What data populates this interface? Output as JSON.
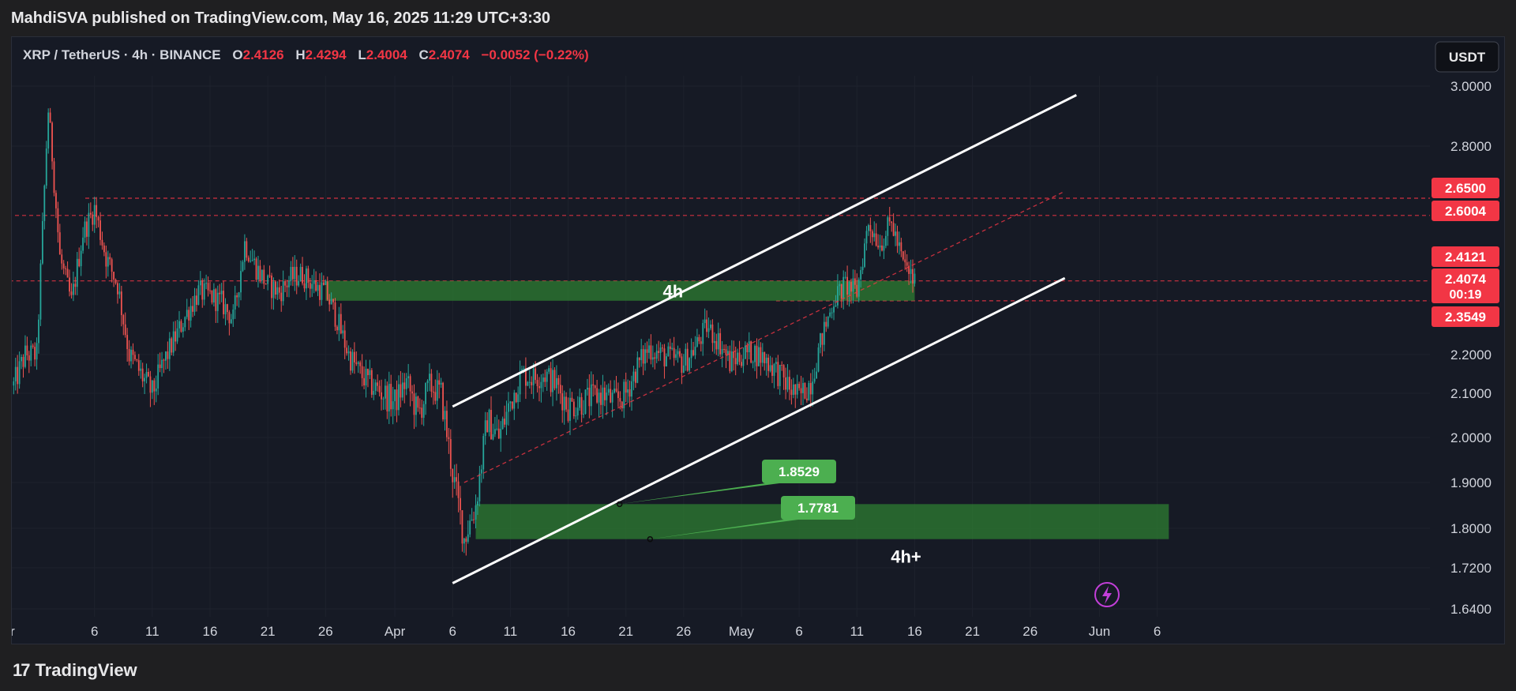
{
  "publisher_line": "MahdiSVA published on TradingView.com, May 16, 2025 11:29 UTC+3:30",
  "footer": {
    "brand": "TradingView",
    "brand_mark": "17"
  },
  "header": {
    "symbol": "XRP / TetherUS · 4h · BINANCE",
    "o_label": "O",
    "o_value": "2.4126",
    "h_label": "H",
    "h_value": "2.4294",
    "l_label": "L",
    "l_value": "2.4004",
    "c_label": "C",
    "c_value": "2.4074",
    "change": "−0.0052 (−0.22%)"
  },
  "currency_button": "USDT",
  "colors": {
    "up": "#26a69a",
    "down": "#ef5350",
    "zone": "#2e7d32",
    "zone_label": "#4caf50",
    "price_tag": "#f23645",
    "background": "#161a25",
    "text": "#d1d4dc",
    "channel": "#ffffff"
  },
  "icons": {
    "alert": "lightning-icon",
    "logo": "tradingview-logo-icon"
  },
  "chart_data": {
    "type": "candlestick",
    "interval": "4h",
    "y_axis": {
      "ticks": [
        "3.0000",
        "2.8000",
        "2.2000",
        "2.1000",
        "2.0000",
        "1.9000",
        "1.8000",
        "1.7200",
        "1.6400"
      ]
    },
    "x_axis": {
      "ticks": [
        "Mar",
        "6",
        "11",
        "16",
        "21",
        "26",
        "Apr",
        "6",
        "11",
        "16",
        "21",
        "26",
        "May",
        "6",
        "11",
        "16",
        "21",
        "26",
        "Jun",
        "6"
      ]
    },
    "price_tags": [
      {
        "value": "2.6500"
      },
      {
        "value": "2.6004"
      },
      {
        "value": "2.4121"
      },
      {
        "value": "2.4074",
        "countdown": "00:19"
      },
      {
        "value": "2.3549"
      }
    ],
    "horizontal_levels": [
      2.65,
      2.6004,
      2.4121,
      2.3549
    ],
    "zones": [
      {
        "label": "4h",
        "from": "2025-03-26",
        "to": "2025-05-16",
        "low": 2.3549,
        "high": 2.4121
      },
      {
        "label": "4h+",
        "from": "2025-04-08",
        "to": "2025-06-07",
        "low": 1.7781,
        "high": 1.8529
      }
    ],
    "callouts": [
      {
        "text": "1.8529",
        "value": 1.8529,
        "date": "2025-04-21"
      },
      {
        "text": "1.7781",
        "value": 1.7781,
        "date": "2025-04-22"
      }
    ],
    "channel_lines": [
      {
        "style": "solid",
        "points": [
          [
            "2025-04-06",
            2.07
          ],
          [
            "2025-05-30",
            2.97
          ]
        ]
      },
      {
        "style": "solid",
        "points": [
          [
            "2025-04-06",
            1.69
          ],
          [
            "2025-05-29",
            2.42
          ]
        ]
      },
      {
        "style": "dashed",
        "points": [
          [
            "2025-04-07",
            1.9
          ],
          [
            "2025-05-29",
            2.67
          ]
        ]
      }
    ],
    "path": [
      [
        "2025-02-27",
        2.12
      ],
      [
        "2025-02-28",
        2.2
      ],
      [
        "2025-03-01",
        2.2
      ],
      [
        "2025-03-02",
        2.92
      ],
      [
        "2025-03-03",
        2.48
      ],
      [
        "2025-03-04",
        2.35
      ],
      [
        "2025-03-05",
        2.55
      ],
      [
        "2025-03-06",
        2.62
      ],
      [
        "2025-03-07",
        2.48
      ],
      [
        "2025-03-08",
        2.4
      ],
      [
        "2025-03-09",
        2.2
      ],
      [
        "2025-03-10",
        2.15
      ],
      [
        "2025-03-11",
        2.1
      ],
      [
        "2025-03-12",
        2.18
      ],
      [
        "2025-03-13",
        2.25
      ],
      [
        "2025-03-14",
        2.32
      ],
      [
        "2025-03-15",
        2.38
      ],
      [
        "2025-03-16",
        2.37
      ],
      [
        "2025-03-17",
        2.35
      ],
      [
        "2025-03-18",
        2.3
      ],
      [
        "2025-03-19",
        2.52
      ],
      [
        "2025-03-20",
        2.45
      ],
      [
        "2025-03-21",
        2.4
      ],
      [
        "2025-03-22",
        2.38
      ],
      [
        "2025-03-23",
        2.42
      ],
      [
        "2025-03-24",
        2.43
      ],
      [
        "2025-03-25",
        2.4
      ],
      [
        "2025-03-26",
        2.38
      ],
      [
        "2025-03-27",
        2.3
      ],
      [
        "2025-03-28",
        2.2
      ],
      [
        "2025-03-29",
        2.15
      ],
      [
        "2025-03-30",
        2.12
      ],
      [
        "2025-03-31",
        2.1
      ],
      [
        "2025-04-01",
        2.08
      ],
      [
        "2025-04-02",
        2.13
      ],
      [
        "2025-04-03",
        2.05
      ],
      [
        "2025-04-04",
        2.12
      ],
      [
        "2025-04-05",
        2.1
      ],
      [
        "2025-04-06",
        1.92
      ],
      [
        "2025-04-07",
        1.78
      ],
      [
        "2025-04-08",
        1.85
      ],
      [
        "2025-04-09",
        2.04
      ],
      [
        "2025-04-10",
        2.0
      ],
      [
        "2025-04-11",
        2.08
      ],
      [
        "2025-04-12",
        2.15
      ],
      [
        "2025-04-13",
        2.14
      ],
      [
        "2025-04-14",
        2.15
      ],
      [
        "2025-04-15",
        2.12
      ],
      [
        "2025-04-16",
        2.07
      ],
      [
        "2025-04-17",
        2.08
      ],
      [
        "2025-04-18",
        2.09
      ],
      [
        "2025-04-19",
        2.1
      ],
      [
        "2025-04-20",
        2.08
      ],
      [
        "2025-04-21",
        2.1
      ],
      [
        "2025-04-22",
        2.17
      ],
      [
        "2025-04-23",
        2.22
      ],
      [
        "2025-04-24",
        2.2
      ],
      [
        "2025-04-25",
        2.19
      ],
      [
        "2025-04-26",
        2.18
      ],
      [
        "2025-04-27",
        2.22
      ],
      [
        "2025-04-28",
        2.28
      ],
      [
        "2025-04-29",
        2.24
      ],
      [
        "2025-04-30",
        2.18
      ],
      [
        "2025-05-01",
        2.2
      ],
      [
        "2025-05-02",
        2.21
      ],
      [
        "2025-05-03",
        2.19
      ],
      [
        "2025-05-04",
        2.16
      ],
      [
        "2025-05-05",
        2.12
      ],
      [
        "2025-05-06",
        2.09
      ],
      [
        "2025-05-07",
        2.13
      ],
      [
        "2025-05-08",
        2.25
      ],
      [
        "2025-05-09",
        2.36
      ],
      [
        "2025-05-10",
        2.4
      ],
      [
        "2025-05-11",
        2.38
      ],
      [
        "2025-05-12",
        2.58
      ],
      [
        "2025-05-13",
        2.52
      ],
      [
        "2025-05-14",
        2.58
      ],
      [
        "2025-05-15",
        2.46
      ],
      [
        "2025-05-16",
        2.41
      ]
    ]
  }
}
